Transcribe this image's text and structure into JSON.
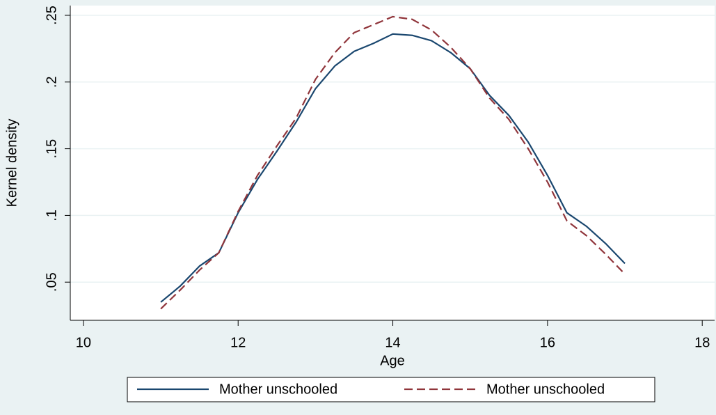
{
  "chart_data": {
    "type": "line",
    "x_label": "Age",
    "y_label": "Kernel density",
    "x": [
      11,
      11.25,
      11.5,
      11.75,
      12,
      12.25,
      12.5,
      12.75,
      13,
      13.25,
      13.5,
      13.75,
      14,
      14.25,
      14.5,
      14.75,
      15,
      15.25,
      15.5,
      15.75,
      16,
      16.25,
      16.5,
      16.75,
      17
    ],
    "series": [
      {
        "name": "Mother unschooled",
        "color": "#1a476f",
        "line_style": "solid",
        "values": [
          0.035,
          0.047,
          0.062,
          0.072,
          0.102,
          0.127,
          0.148,
          0.17,
          0.195,
          0.212,
          0.223,
          0.229,
          0.236,
          0.235,
          0.231,
          0.222,
          0.21,
          0.19,
          0.175,
          0.155,
          0.13,
          0.102,
          0.092,
          0.079,
          0.064
        ]
      },
      {
        "name": "Mother unschooled",
        "color": "#90353b",
        "line_style": "dashed",
        "values": [
          0.03,
          0.044,
          0.059,
          0.072,
          0.103,
          0.13,
          0.152,
          0.173,
          0.202,
          0.222,
          0.237,
          0.243,
          0.249,
          0.247,
          0.239,
          0.226,
          0.21,
          0.188,
          0.172,
          0.15,
          0.125,
          0.096,
          0.085,
          0.071,
          0.056
        ]
      }
    ],
    "xlim": [
      9.83,
      18.16
    ],
    "xticks": [
      10,
      12,
      14,
      16,
      18
    ],
    "ylim": [
      0.0214,
      0.2573
    ],
    "yticks": [
      {
        "value": 0.05,
        "label": ".05"
      },
      {
        "value": 0.1,
        "label": ".1"
      },
      {
        "value": 0.15,
        "label": ".15"
      },
      {
        "value": 0.2,
        "label": ".2"
      },
      {
        "value": 0.25,
        "label": ".25"
      }
    ],
    "grid": true,
    "legend": "bottom"
  }
}
